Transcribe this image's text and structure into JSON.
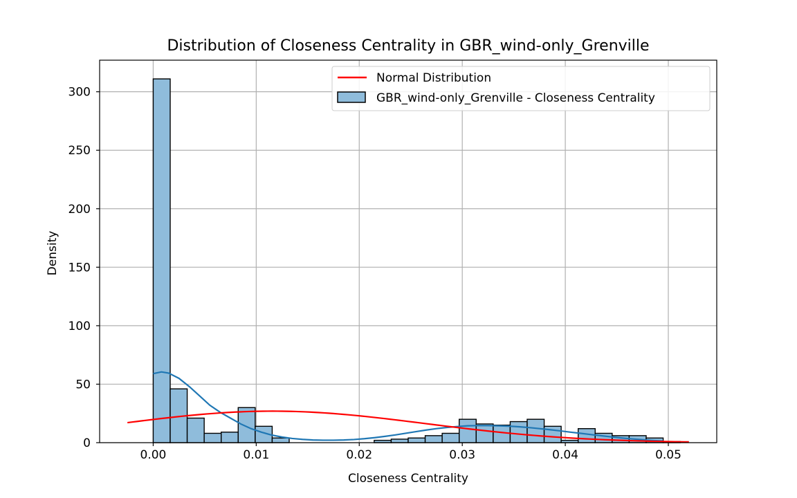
{
  "chart_data": {
    "type": "bar",
    "title": "Distribution of Closeness Centrality in GBR_wind-only_Grenville",
    "xlabel": "Closeness Centrality",
    "ylabel": "Density",
    "xlim": [
      -0.0052,
      0.0547
    ],
    "ylim": [
      0,
      327
    ],
    "xticks": [
      0.0,
      0.01,
      0.02,
      0.03,
      0.04,
      0.05
    ],
    "xtick_labels": [
      "0.00",
      "0.01",
      "0.02",
      "0.03",
      "0.04",
      "0.05"
    ],
    "yticks": [
      0,
      50,
      100,
      150,
      200,
      250,
      300
    ],
    "ytick_labels": [
      "0",
      "50",
      "100",
      "150",
      "200",
      "250",
      "300"
    ],
    "grid": true,
    "legend_position": "top-right",
    "histogram": {
      "name": "GBR_wind-only_Grenville - Closeness Centrality",
      "color": "#8fbcdb",
      "edge_color": "#000000",
      "bin_start": 0.0,
      "bin_width": 0.00165,
      "values": [
        311,
        46,
        21,
        8,
        9,
        30,
        14,
        4,
        0,
        0,
        0,
        0,
        0,
        2,
        3,
        4,
        6,
        8,
        20,
        16,
        15,
        18,
        20,
        14,
        2,
        12,
        8,
        6,
        6,
        4,
        1
      ]
    },
    "kde": {
      "color": "#1f77b4",
      "x": [
        0.0,
        0.0008,
        0.0015,
        0.0025,
        0.0035,
        0.0045,
        0.0055,
        0.0065,
        0.0075,
        0.0085,
        0.0095,
        0.0105,
        0.0115,
        0.0125,
        0.0135,
        0.0145,
        0.0155,
        0.0165,
        0.0175,
        0.0185,
        0.0195,
        0.0205,
        0.0215,
        0.0225,
        0.0235,
        0.0245,
        0.0255,
        0.0265,
        0.0275,
        0.0285,
        0.0295,
        0.0305,
        0.0315,
        0.0325,
        0.0335,
        0.0345,
        0.0355,
        0.0365,
        0.0375,
        0.0385,
        0.0395,
        0.0405,
        0.0415,
        0.0425,
        0.0435,
        0.0445,
        0.0455,
        0.0465,
        0.0475,
        0.0485,
        0.0495
      ],
      "y": [
        59,
        60.5,
        59.5,
        55,
        48,
        40,
        32,
        26,
        21,
        16,
        12,
        9,
        6.5,
        4.8,
        3.6,
        2.8,
        2.3,
        2.1,
        2.1,
        2.3,
        2.7,
        3.4,
        4.3,
        5.4,
        6.6,
        8,
        9.4,
        10.8,
        12,
        13,
        13.8,
        14.4,
        14.6,
        14.6,
        14.4,
        14.1,
        13.6,
        12.9,
        12,
        11.1,
        10.1,
        9,
        8,
        6.9,
        5.9,
        4.9,
        4,
        3.2,
        2.5,
        1.9,
        1.4
      ]
    },
    "normal": {
      "name": "Normal Distribution",
      "color": "#ff0000",
      "mean": 0.0116,
      "std": 0.0148,
      "x_range": [
        -0.0025,
        0.052
      ]
    }
  }
}
